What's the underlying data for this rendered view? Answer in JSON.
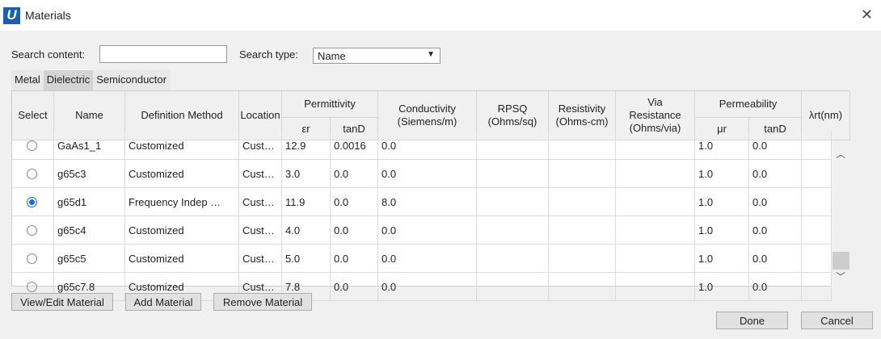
{
  "window": {
    "title": "Materials",
    "logo": "U"
  },
  "search": {
    "content_label": "Search content:",
    "content_value": "",
    "type_label": "Search type:",
    "type_value": "Name"
  },
  "tabs": [
    {
      "label": "Metal"
    },
    {
      "label": "Dielectric",
      "active": true
    },
    {
      "label": "Semiconductor"
    }
  ],
  "headers": {
    "select": "Select",
    "name": "Name",
    "method": "Definition Method",
    "location": "Location",
    "permittivity": "Permittivity",
    "er": "εr",
    "tand": "tanD",
    "conductivity": "Conductivity (Siemens/m)",
    "rpsq": "RPSQ (Ohms/sq)",
    "resistivity": "Resistivity (Ohms-cm)",
    "via": "Via Resistance (Ohms/via)",
    "permeability": "Permeability",
    "mur": "μr",
    "mtand": "tanD",
    "lambda": "λrt(nm)"
  },
  "rows": [
    {
      "selected": false,
      "name": "GaAs1_1",
      "method": "Customized",
      "location": "Cust…",
      "er": "12.9",
      "tand": "0.0016",
      "cond": "0.0",
      "rpsq": "",
      "res": "",
      "via": "",
      "mur": "1.0",
      "mtand": "0.0",
      "lambda": ""
    },
    {
      "selected": false,
      "name": "g65c3",
      "method": "Customized",
      "location": "Cust…",
      "er": "3.0",
      "tand": "0.0",
      "cond": "0.0",
      "rpsq": "",
      "res": "",
      "via": "",
      "mur": "1.0",
      "mtand": "0.0",
      "lambda": ""
    },
    {
      "selected": true,
      "name": "g65d1",
      "method": "Frequency Indep …",
      "location": "Cust…",
      "er": "11.9",
      "tand": "0.0",
      "cond": "8.0",
      "rpsq": "",
      "res": "",
      "via": "",
      "mur": "1.0",
      "mtand": "0.0",
      "lambda": ""
    },
    {
      "selected": false,
      "name": "g65c4",
      "method": "Customized",
      "location": "Cust…",
      "er": "4.0",
      "tand": "0.0",
      "cond": "0.0",
      "rpsq": "",
      "res": "",
      "via": "",
      "mur": "1.0",
      "mtand": "0.0",
      "lambda": ""
    },
    {
      "selected": false,
      "name": "g65c5",
      "method": "Customized",
      "location": "Cust…",
      "er": "5.0",
      "tand": "0.0",
      "cond": "0.0",
      "rpsq": "",
      "res": "",
      "via": "",
      "mur": "1.0",
      "mtand": "0.0",
      "lambda": ""
    },
    {
      "selected": false,
      "name": "g65c7.8",
      "method": "Customized",
      "location": "Cust…",
      "er": "7.8",
      "tand": "0.0",
      "cond": "0.0",
      "rpsq": "",
      "res": "",
      "via": "",
      "mur": "1.0",
      "mtand": "0.0",
      "lambda": ""
    }
  ],
  "buttons": {
    "view_edit": "View/Edit Material",
    "add": "Add Material",
    "remove": "Remove Material",
    "done": "Done",
    "cancel": "Cancel"
  },
  "icons": {
    "close": "close-icon",
    "scroll_up": "chevron-up-icon",
    "scroll_down": "chevron-down-icon",
    "dropdown": "caret-down-icon"
  },
  "colors": {
    "logo": "#1f5fa8",
    "radio_selected": "#1a6be0"
  }
}
